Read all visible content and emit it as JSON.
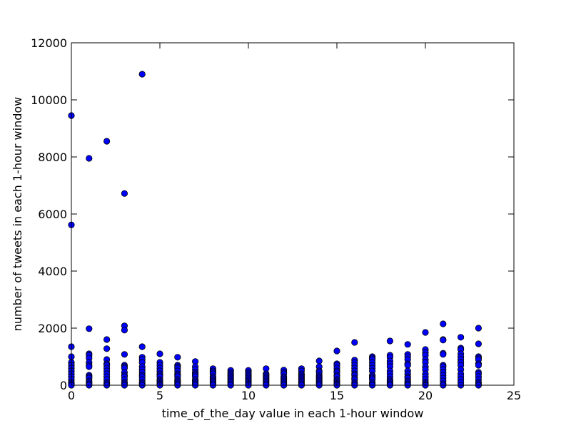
{
  "chart_data": {
    "type": "scatter",
    "title": "",
    "xlabel": "time_of_the_day value in each 1-hour window",
    "ylabel": "number of tweets in each 1-hour window",
    "xlim": [
      0,
      25
    ],
    "ylim": [
      0,
      12000
    ],
    "xticks": [
      0,
      5,
      10,
      15,
      20,
      25
    ],
    "yticks": [
      0,
      2000,
      4000,
      6000,
      8000,
      10000,
      12000
    ],
    "grid": false,
    "legend": "none",
    "marker_color": "#0000ff",
    "marker_edge_color": "#000000",
    "points_by_hour": [
      {
        "x": 0,
        "y": [
          9450,
          5620,
          1350,
          1000,
          800,
          700,
          600,
          500,
          400,
          300,
          200,
          100,
          50,
          0
        ]
      },
      {
        "x": 1,
        "y": [
          7950,
          1980,
          1100,
          1050,
          950,
          800,
          700,
          650,
          350,
          300,
          250,
          150,
          100,
          50,
          0
        ]
      },
      {
        "x": 2,
        "y": [
          8550,
          1600,
          1280,
          900,
          750,
          700,
          600,
          500,
          400,
          300,
          200,
          100,
          50,
          0
        ]
      },
      {
        "x": 3,
        "y": [
          6720,
          2080,
          1930,
          1080,
          700,
          650,
          600,
          450,
          350,
          300,
          200,
          100,
          50,
          0
        ]
      },
      {
        "x": 4,
        "y": [
          10900,
          1350,
          980,
          900,
          800,
          650,
          550,
          450,
          350,
          300,
          200,
          100,
          50,
          0
        ]
      },
      {
        "x": 5,
        "y": [
          1100,
          800,
          700,
          600,
          500,
          400,
          350,
          300,
          200,
          150,
          100,
          50,
          0
        ]
      },
      {
        "x": 6,
        "y": [
          980,
          700,
          650,
          600,
          500,
          400,
          350,
          300,
          200,
          150,
          100,
          50,
          0
        ]
      },
      {
        "x": 7,
        "y": [
          830,
          650,
          550,
          450,
          400,
          350,
          300,
          200,
          150,
          100,
          50,
          0
        ]
      },
      {
        "x": 8,
        "y": [
          580,
          500,
          450,
          400,
          300,
          250,
          200,
          150,
          100,
          50,
          0
        ]
      },
      {
        "x": 9,
        "y": [
          520,
          450,
          400,
          350,
          300,
          250,
          200,
          150,
          100,
          50,
          0
        ]
      },
      {
        "x": 10,
        "y": [
          520,
          450,
          400,
          350,
          300,
          250,
          200,
          150,
          100,
          50,
          0
        ]
      },
      {
        "x": 11,
        "y": [
          580,
          400,
          350,
          300,
          250,
          200,
          150,
          100,
          50,
          0
        ]
      },
      {
        "x": 12,
        "y": [
          530,
          450,
          400,
          300,
          250,
          200,
          150,
          100,
          50,
          0
        ]
      },
      {
        "x": 13,
        "y": [
          580,
          500,
          400,
          350,
          300,
          250,
          200,
          150,
          100,
          50,
          0
        ]
      },
      {
        "x": 14,
        "y": [
          850,
          650,
          500,
          450,
          350,
          300,
          250,
          200,
          150,
          100,
          50,
          0
        ]
      },
      {
        "x": 15,
        "y": [
          1200,
          750,
          700,
          600,
          500,
          450,
          350,
          300,
          200,
          150,
          100,
          50,
          0
        ]
      },
      {
        "x": 16,
        "y": [
          1500,
          880,
          800,
          700,
          600,
          500,
          400,
          350,
          250,
          200,
          100,
          50,
          0
        ]
      },
      {
        "x": 17,
        "y": [
          1000,
          950,
          900,
          800,
          700,
          600,
          500,
          350,
          300,
          250,
          200,
          100,
          50,
          0
        ]
      },
      {
        "x": 18,
        "y": [
          1550,
          1050,
          980,
          850,
          750,
          650,
          500,
          400,
          300,
          200,
          150,
          100,
          50,
          0
        ]
      },
      {
        "x": 19,
        "y": [
          1430,
          1080,
          1000,
          900,
          750,
          700,
          500,
          400,
          300,
          250,
          150,
          100,
          50,
          0
        ]
      },
      {
        "x": 20,
        "y": [
          1850,
          1250,
          1150,
          1050,
          900,
          800,
          650,
          550,
          400,
          300,
          200,
          100,
          50,
          0
        ]
      },
      {
        "x": 21,
        "y": [
          2150,
          1600,
          1580,
          1120,
          1080,
          700,
          650,
          550,
          450,
          350,
          250,
          150,
          50,
          0
        ]
      },
      {
        "x": 22,
        "y": [
          1680,
          1300,
          1250,
          1100,
          1000,
          900,
          800,
          700,
          550,
          400,
          300,
          200,
          100,
          0
        ]
      },
      {
        "x": 23,
        "y": [
          2000,
          1450,
          1000,
          950,
          900,
          750,
          700,
          450,
          400,
          300,
          200,
          100,
          50,
          0
        ]
      }
    ]
  }
}
